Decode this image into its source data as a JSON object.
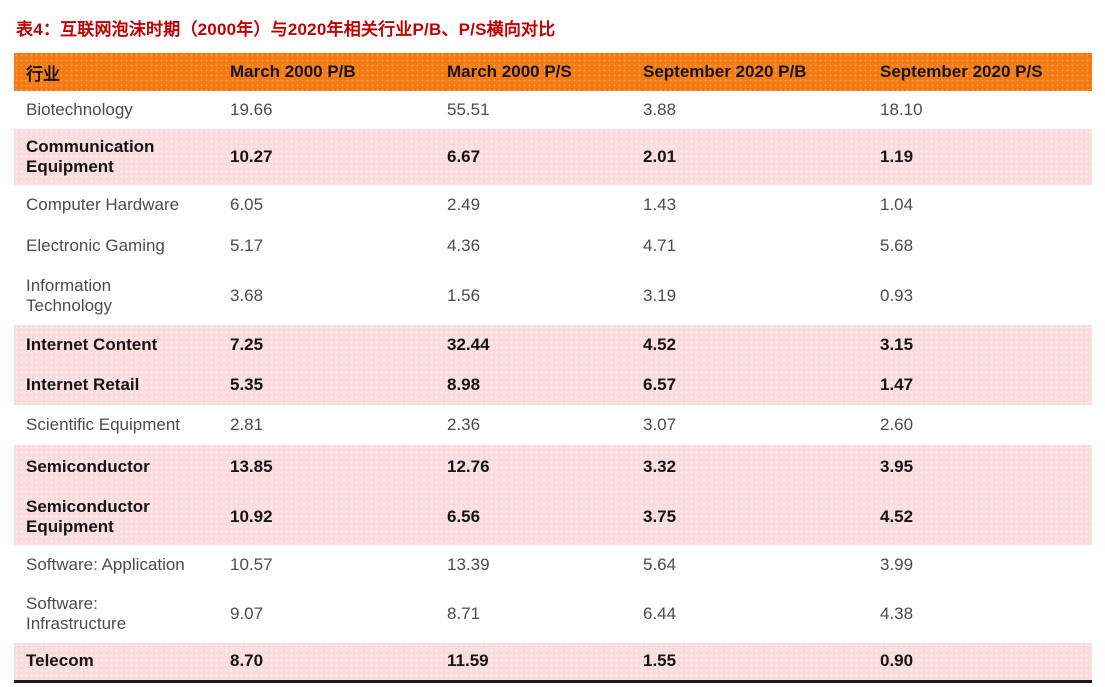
{
  "title": "表4：互联网泡沫时期（2000年）与2020年相关行业P/B、P/S横向对比",
  "colors": {
    "header_orange": "#f57a12",
    "highlight_pink": "#fadcde",
    "title_red": "#c00000",
    "bottom_rule_black": "#1a1a1a"
  },
  "table": {
    "columns": [
      "行业",
      "March 2000 P/B",
      "March 2000 P/S",
      "September 2020 P/B",
      "September 2020 P/S"
    ],
    "rows": [
      {
        "industry": "Biotechnology",
        "values": [
          "19.66",
          "55.51",
          "3.88",
          "18.10"
        ],
        "highlighted": false
      },
      {
        "industry": "Communication\nEquipment",
        "values": [
          "10.27",
          "6.67",
          "2.01",
          "1.19"
        ],
        "highlighted": true
      },
      {
        "industry": "Computer Hardware",
        "values": [
          "6.05",
          "2.49",
          "1.43",
          "1.04"
        ],
        "highlighted": false
      },
      {
        "industry": "Electronic Gaming",
        "values": [
          "5.17",
          "4.36",
          "4.71",
          "5.68"
        ],
        "highlighted": false
      },
      {
        "industry": "Information\nTechnology",
        "values": [
          "3.68",
          "1.56",
          "3.19",
          "0.93"
        ],
        "highlighted": false
      },
      {
        "industry": "Internet Content",
        "values": [
          "7.25",
          "32.44",
          "4.52",
          "3.15"
        ],
        "highlighted": true
      },
      {
        "industry": "Internet Retail",
        "values": [
          "5.35",
          "8.98",
          "6.57",
          "1.47"
        ],
        "highlighted": true
      },
      {
        "industry": "Scientific Equipment",
        "values": [
          "2.81",
          "2.36",
          "3.07",
          "2.60"
        ],
        "highlighted": false
      },
      {
        "industry": "Semiconductor",
        "values": [
          "13.85",
          "12.76",
          "3.32",
          "3.95"
        ],
        "highlighted": true
      },
      {
        "industry": "Semiconductor\nEquipment",
        "values": [
          "10.92",
          "6.56",
          "3.75",
          "4.52"
        ],
        "highlighted": true
      },
      {
        "industry": "Software: Application",
        "values": [
          "10.57",
          "13.39",
          "5.64",
          "3.99"
        ],
        "highlighted": false
      },
      {
        "industry": "Software:\nInfrastructure",
        "values": [
          "9.07",
          "8.71",
          "6.44",
          "4.38"
        ],
        "highlighted": false
      },
      {
        "industry": "Telecom",
        "values": [
          "8.70",
          "11.59",
          "1.55",
          "0.90"
        ],
        "highlighted": true
      }
    ]
  }
}
